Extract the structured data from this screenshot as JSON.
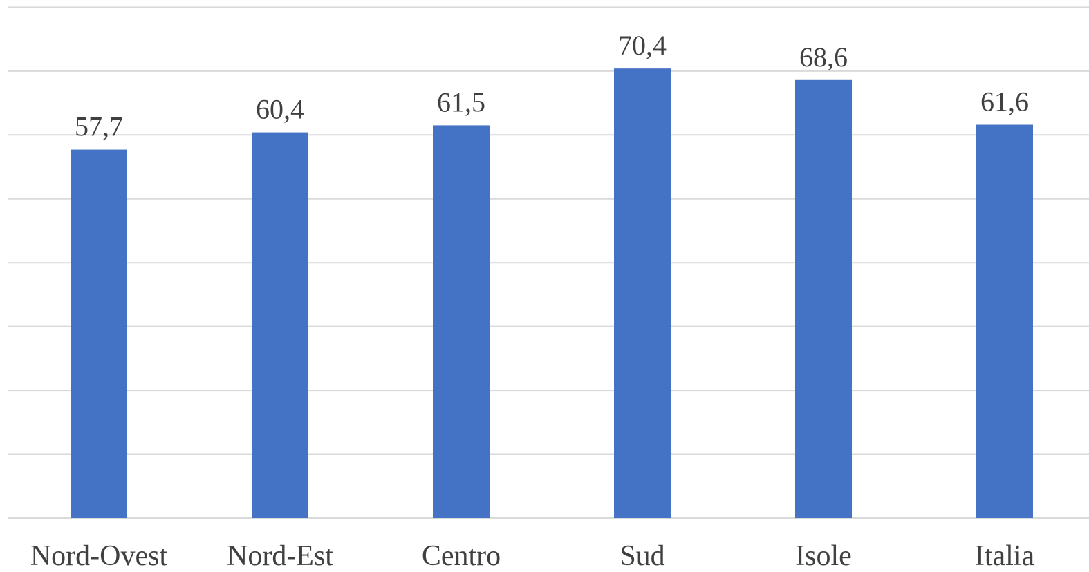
{
  "chart_data": {
    "type": "bar",
    "categories": [
      "Nord-Ovest",
      "Nord-Est",
      "Centro",
      "Sud",
      "Isole",
      "Italia"
    ],
    "values": [
      57.7,
      60.4,
      61.5,
      70.4,
      68.6,
      61.6
    ],
    "value_labels": [
      "57,7",
      "60,4",
      "61,5",
      "70,4",
      "68,6",
      "61,6"
    ],
    "title": "",
    "xlabel": "",
    "ylabel": "",
    "ylim": [
      0,
      80
    ],
    "grid_step": 10,
    "grid": true,
    "legend": "none",
    "bar_color": "#4472c4",
    "grid_color": "#d9d9d9",
    "text_color": "#404040"
  }
}
